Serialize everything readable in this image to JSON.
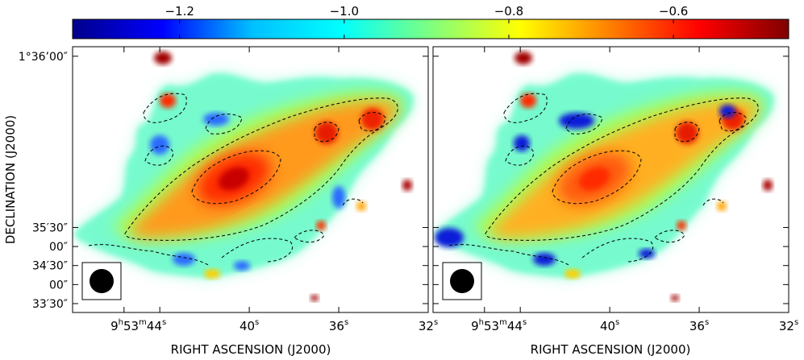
{
  "chart_data": {
    "type": "heatmap",
    "colorbar": {
      "range": [
        -1.33,
        -0.46
      ],
      "ticks": [
        {
          "value": -1.2,
          "label": "−1.2"
        },
        {
          "value": -1.0,
          "label": "−1.0"
        },
        {
          "value": -0.8,
          "label": "−0.8"
        },
        {
          "value": -0.6,
          "label": "−0.6"
        }
      ],
      "colormap": [
        "#00008b",
        "#0000ff",
        "#00bfff",
        "#00ffff",
        "#7fff7f",
        "#ffff00",
        "#ff8000",
        "#ff0000",
        "#800000"
      ]
    },
    "ylabel": "DECLINATION (J2000)",
    "xlabel": "RIGHT ASCENSION (J2000)",
    "ra_ticks": [
      {
        "value": 45.6,
        "label": "",
        "main": ""
      },
      {
        "value": 44,
        "label": "44",
        "main": "9",
        "unit_h": "h",
        "mid": "53",
        "unit_m": "m",
        "unit_s": "s"
      },
      {
        "value": 40,
        "label": "40",
        "unit_s": "s"
      },
      {
        "value": 36,
        "label": "36",
        "unit_s": "s"
      },
      {
        "value": 32,
        "label": "32",
        "unit_s": "s"
      }
    ],
    "dec_ticks": [
      {
        "value": 6000,
        "label": "1°36’00″"
      },
      {
        "value": 5730,
        "label": "35′30″"
      },
      {
        "value": 5700,
        "label": "00″"
      },
      {
        "value": 5670,
        "label": "34′30″"
      },
      {
        "value": 5640,
        "label": "00″"
      },
      {
        "value": 5610,
        "label": "33′30″"
      }
    ],
    "ra_range": [
      47.9,
      32.0
    ],
    "dec_range": [
      5596,
      6015
    ],
    "panels": [
      {
        "name": "left",
        "beam": true
      },
      {
        "name": "right",
        "beam": true
      }
    ]
  }
}
